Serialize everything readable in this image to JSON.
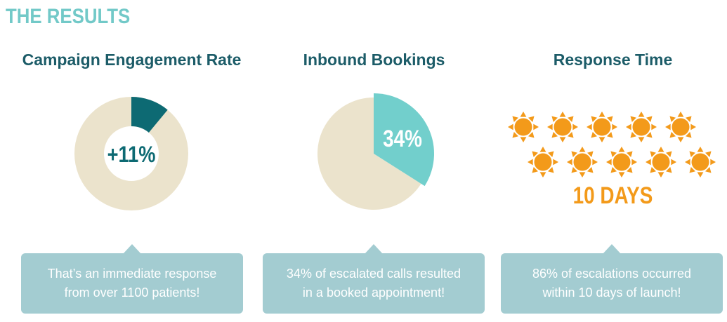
{
  "header": {
    "title": "THE RESULTS"
  },
  "colors": {
    "title": "#72c9c8",
    "heading": "#1c5c68",
    "donut_value": "#0d6a73",
    "donut_rest": "#ebe3cc",
    "pie_value": "#72cfcc",
    "pie_rest": "#ebe3cc",
    "sun": "#f39a1a",
    "callout": "#a3ccd1"
  },
  "panels": [
    {
      "title": "Campaign Engagement Rate",
      "callout": [
        "That’s an immediate response",
        "from over 1100 patients!"
      ]
    },
    {
      "title": "Inbound Bookings",
      "callout": [
        "34% of escalated calls resulted",
        "in a booked appointment!"
      ]
    },
    {
      "title": "Response Time",
      "callout": [
        "86% of escalations occurred",
        "within 10 days of launch!"
      ]
    }
  ],
  "chart_data": [
    {
      "type": "pie",
      "style": "donut",
      "values": [
        11,
        89
      ],
      "center_label": "+11%"
    },
    {
      "type": "pie",
      "values": [
        34,
        66
      ],
      "slice_label": "34%"
    },
    {
      "type": "pictograph",
      "icon": "sun-icon",
      "count": 10,
      "rows": [
        5,
        5
      ],
      "label": "10 DAYS"
    }
  ]
}
